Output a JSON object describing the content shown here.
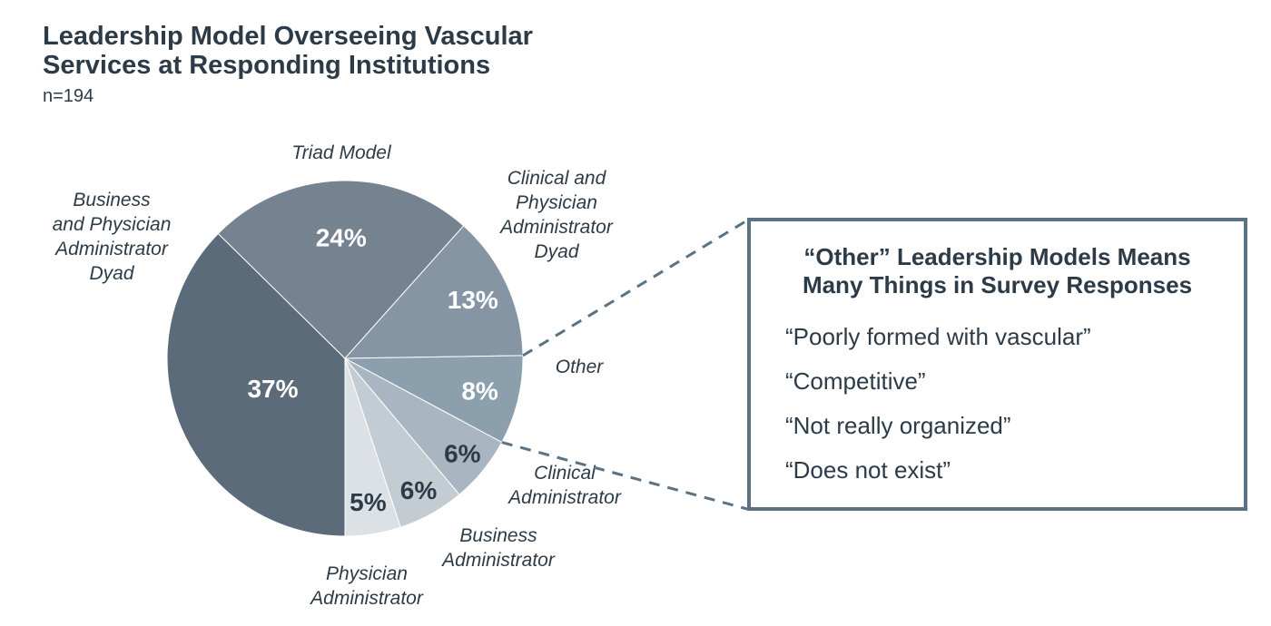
{
  "header": {
    "title_lines": [
      "Leadership Model Overseeing Vascular",
      "Services at Responding Institutions"
    ],
    "sample_size": "n=194"
  },
  "chart_data": {
    "type": "pie",
    "title": "Leadership Model Overseeing Vascular Services at Responding Institutions",
    "sample_label": "n=194",
    "slices": [
      {
        "label": "Business and Physician Administrator Dyad",
        "label_lines": [
          "Business",
          "and Physician",
          "Administrator",
          "Dyad"
        ],
        "value": 37,
        "value_label": "37%",
        "color": "#5C6B79",
        "value_text_color": "#FFFFFF"
      },
      {
        "label": "Triad Model",
        "label_lines": [
          "Triad Model"
        ],
        "value": 24,
        "value_label": "24%",
        "color": "#75828F",
        "value_text_color": "#FFFFFF"
      },
      {
        "label": "Clinical and Physician Administrator Dyad",
        "label_lines": [
          "Clinical and",
          "Physician",
          "Administrator",
          "Dyad"
        ],
        "value": 13,
        "value_label": "13%",
        "color": "#8695A3",
        "value_text_color": "#FFFFFF"
      },
      {
        "label": "Other",
        "label_lines": [
          "Other"
        ],
        "value": 8,
        "value_label": "8%",
        "color": "#8B9FAD",
        "value_text_color": "#FFFFFF"
      },
      {
        "label": "Clinical Administrator",
        "label_lines": [
          "Clinical",
          "Administrator"
        ],
        "value": 6,
        "value_label": "6%",
        "color": "#A9B5C0",
        "value_text_color": "#2C3B47"
      },
      {
        "label": "Business Administrator",
        "label_lines": [
          "Business",
          "Administrator"
        ],
        "value": 6,
        "value_label": "6%",
        "color": "#C3CCD3",
        "value_text_color": "#2C3B47"
      },
      {
        "label": "Physician Administrator",
        "label_lines": [
          "Physician",
          "Administrator"
        ],
        "value": 5,
        "value_label": "5%",
        "color": "#DCE1E5",
        "value_text_color": "#2C3B47"
      }
    ],
    "layout_hints": {
      "start_angle_deg": 180,
      "direction": "clockwise",
      "legend": "none",
      "callout_slice": "Other"
    }
  },
  "callout": {
    "title_lines": [
      "“Other” Leadership Models Means",
      "Many Things in Survey Responses"
    ],
    "items": [
      "“Poorly formed with vascular”",
      "“Competitive”",
      "“Not really organized”",
      "“Does not exist”"
    ]
  },
  "colors": {
    "text_dark": "#2C3B47",
    "connector_line": "#5B7282",
    "background": "#FFFFFF"
  }
}
